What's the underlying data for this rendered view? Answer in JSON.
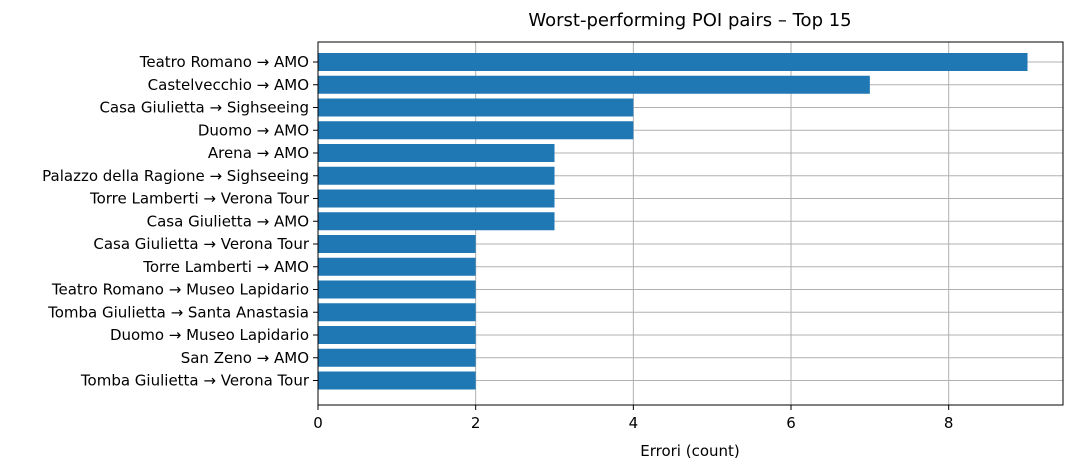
{
  "chart_data": {
    "type": "bar",
    "orientation": "horizontal",
    "title": "Worst-performing POI pairs – Top 15",
    "xlabel": "Errori (count)",
    "ylabel": "",
    "xlim": [
      0,
      9.45
    ],
    "xticks": [
      0,
      2,
      4,
      6,
      8
    ],
    "grid": true,
    "bar_color": "#1f77b4",
    "categories": [
      "Teatro Romano → AMO",
      "Castelvecchio → AMO",
      "Casa Giulietta → Sighseeing",
      "Duomo → AMO",
      "Arena → AMO",
      "Palazzo della Ragione → Sighseeing",
      "Torre Lamberti → Verona Tour",
      "Casa Giulietta → AMO",
      "Casa Giulietta → Verona Tour",
      "Torre Lamberti → AMO",
      "Teatro Romano → Museo Lapidario",
      "Tomba Giulietta → Santa Anastasia",
      "Duomo → Museo Lapidario",
      "San Zeno → AMO",
      "Tomba Giulietta → Verona Tour"
    ],
    "values": [
      9,
      7,
      4,
      4,
      3,
      3,
      3,
      3,
      2,
      2,
      2,
      2,
      2,
      2,
      2
    ]
  }
}
